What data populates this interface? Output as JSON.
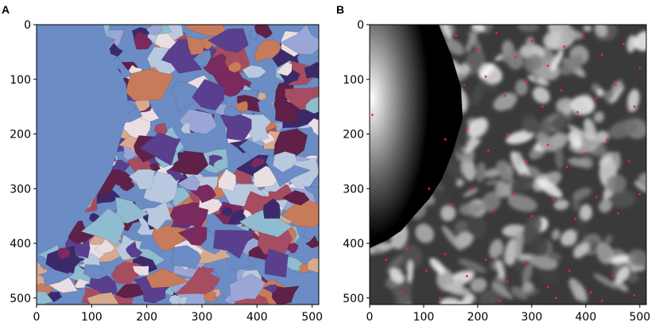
{
  "chart_data": [
    {
      "type": "heatmap",
      "panel_label": "A",
      "xlabel": "",
      "ylabel": "",
      "xlim": [
        0,
        512
      ],
      "ylim": [
        512,
        0
      ],
      "x_ticks": [
        0,
        100,
        200,
        300,
        400,
        500
      ],
      "y_ticks": [
        0,
        100,
        200,
        300,
        400,
        500
      ],
      "x_tick_labels": [
        "0",
        "100",
        "200",
        "300",
        "400",
        "500"
      ],
      "y_tick_labels": [
        "0",
        "100",
        "200",
        "300",
        "400",
        "500"
      ],
      "grid": false,
      "colormap": "twilight",
      "background_region_color": "#6b8cc4",
      "palette": [
        "#6b8cc4",
        "#5a3f8f",
        "#7a2a5e",
        "#c87b5a",
        "#8fbcd0",
        "#e9dfe3",
        "#3b2a6b",
        "#a74d62",
        "#d7a98d",
        "#9aa7d6",
        "#5f2148",
        "#b8c9df"
      ]
    },
    {
      "type": "heatmap",
      "panel_label": "B",
      "xlabel": "",
      "ylabel": "",
      "xlim": [
        0,
        512
      ],
      "ylim": [
        512,
        0
      ],
      "x_ticks": [
        0,
        100,
        200,
        300,
        400,
        500
      ],
      "y_ticks": [
        0,
        100,
        200,
        300,
        400,
        500
      ],
      "x_tick_labels": [
        "0",
        "100",
        "200",
        "300",
        "400",
        "500"
      ],
      "y_tick_labels": [
        "0",
        "100",
        "200",
        "300",
        "400",
        "500"
      ],
      "grid": false,
      "colormap": "gray",
      "marker_color": "#ff2020",
      "markers": [
        [
          160,
          20
        ],
        [
          200,
          45
        ],
        [
          235,
          15
        ],
        [
          270,
          60
        ],
        [
          300,
          30
        ],
        [
          330,
          75
        ],
        [
          360,
          40
        ],
        [
          395,
          20
        ],
        [
          430,
          55
        ],
        [
          470,
          35
        ],
        [
          500,
          80
        ],
        [
          175,
          110
        ],
        [
          215,
          95
        ],
        [
          250,
          130
        ],
        [
          290,
          105
        ],
        [
          320,
          150
        ],
        [
          355,
          120
        ],
        [
          385,
          160
        ],
        [
          420,
          135
        ],
        [
          455,
          110
        ],
        [
          490,
          150
        ],
        [
          140,
          210
        ],
        [
          180,
          190
        ],
        [
          220,
          230
        ],
        [
          255,
          200
        ],
        [
          290,
          250
        ],
        [
          330,
          220
        ],
        [
          365,
          260
        ],
        [
          400,
          235
        ],
        [
          440,
          210
        ],
        [
          480,
          250
        ],
        [
          110,
          300
        ],
        [
          150,
          330
        ],
        [
          190,
          300
        ],
        [
          230,
          340
        ],
        [
          265,
          310
        ],
        [
          300,
          350
        ],
        [
          340,
          320
        ],
        [
          380,
          355
        ],
        [
          420,
          315
        ],
        [
          460,
          345
        ],
        [
          500,
          310
        ],
        [
          30,
          430
        ],
        [
          70,
          410
        ],
        [
          105,
          450
        ],
        [
          140,
          420
        ],
        [
          180,
          460
        ],
        [
          215,
          430
        ],
        [
          255,
          470
        ],
        [
          290,
          440
        ],
        [
          330,
          480
        ],
        [
          370,
          450
        ],
        [
          410,
          490
        ],
        [
          450,
          460
        ],
        [
          490,
          495
        ],
        [
          60,
          490
        ],
        [
          130,
          500
        ],
        [
          240,
          505
        ],
        [
          345,
          500
        ],
        [
          430,
          505
        ],
        [
          5,
          165
        ]
      ]
    }
  ]
}
